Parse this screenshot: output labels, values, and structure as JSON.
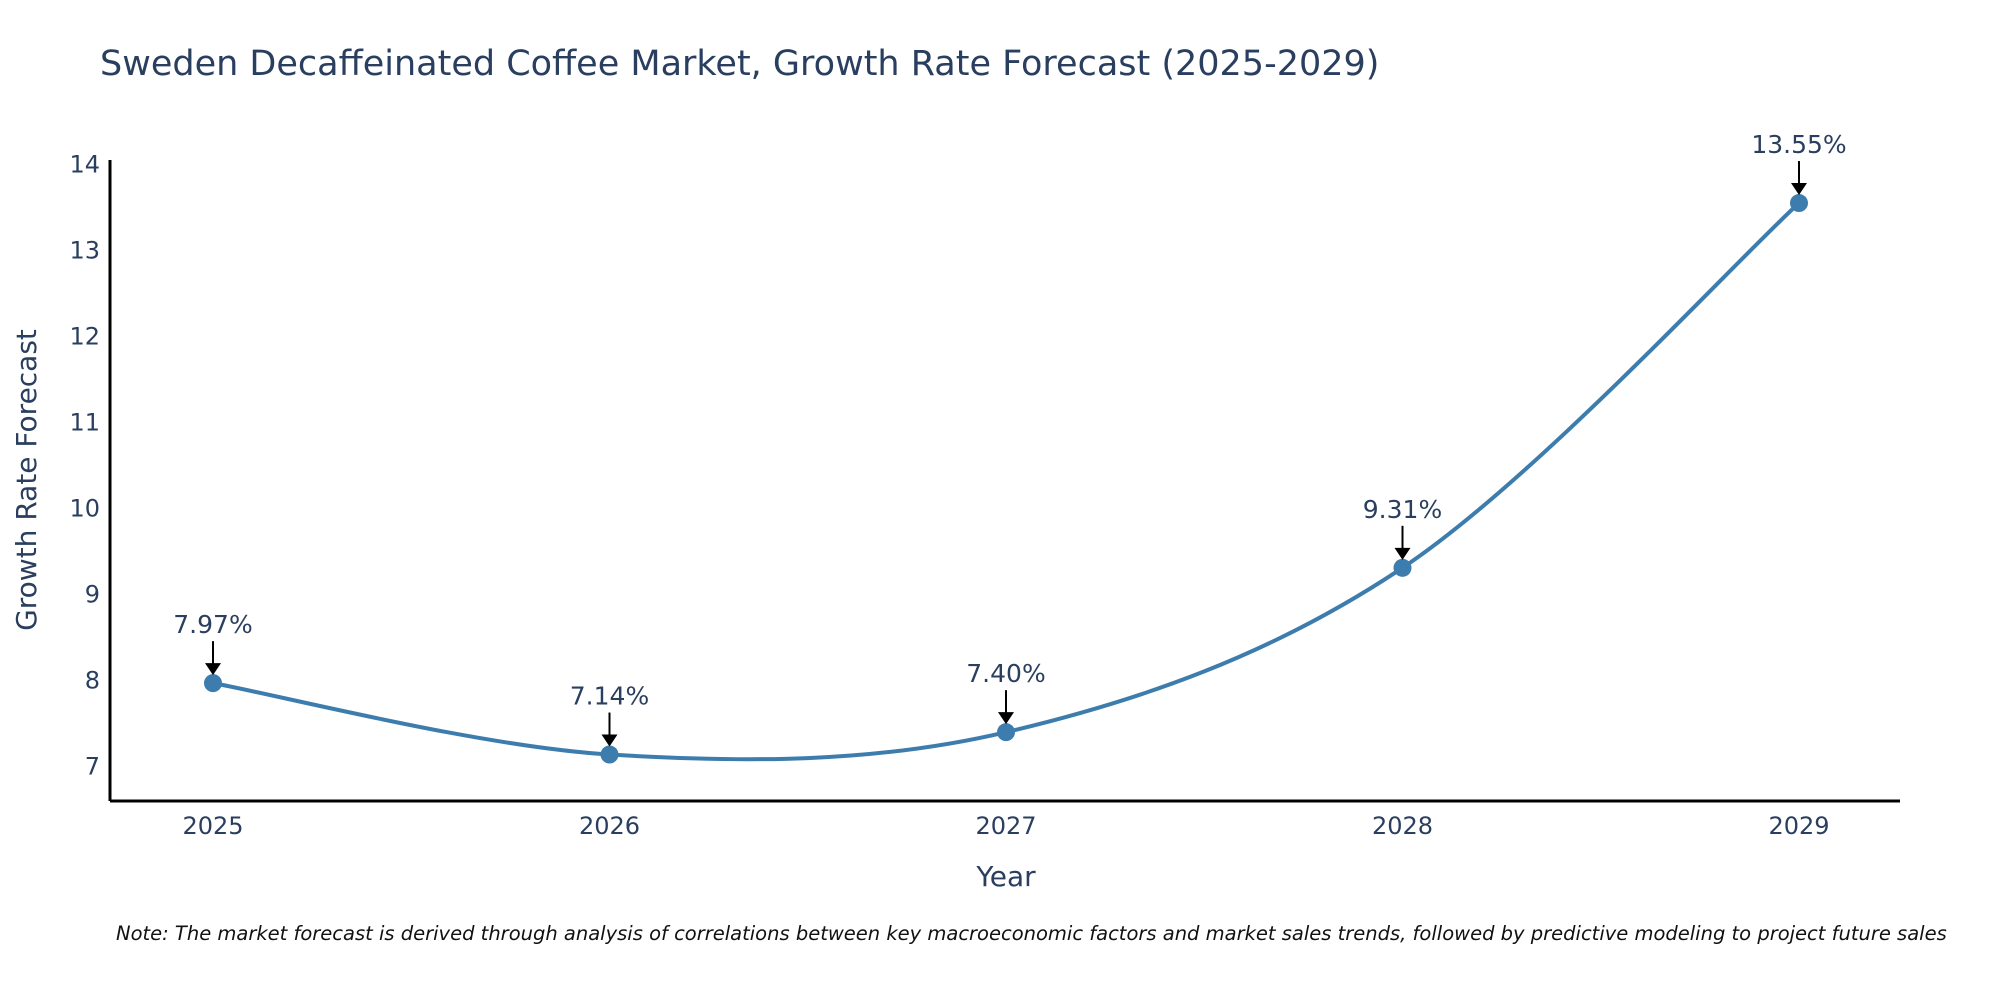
{
  "chart_data": {
    "type": "line",
    "title": "Sweden Decaffeinated Coffee Market, Growth Rate Forecast (2025-2029)",
    "xlabel": "Year",
    "ylabel": "Growth Rate Forecast",
    "categories": [
      "2025",
      "2026",
      "2027",
      "2028",
      "2029"
    ],
    "values": [
      7.97,
      7.14,
      7.4,
      9.31,
      13.55
    ],
    "data_labels": [
      "7.97%",
      "7.14%",
      "7.40%",
      "9.31%",
      "13.55%"
    ],
    "yticks": [
      7,
      8,
      9,
      10,
      11,
      12,
      13,
      14
    ],
    "ylim": [
      6.6,
      14.05
    ],
    "line_color": "#3d7dad",
    "marker_color": "#3d7dad",
    "note": "Note: The market forecast is derived through analysis of correlations between key macroeconomic factors and market sales trends, followed by predictive modeling to project future sales"
  }
}
